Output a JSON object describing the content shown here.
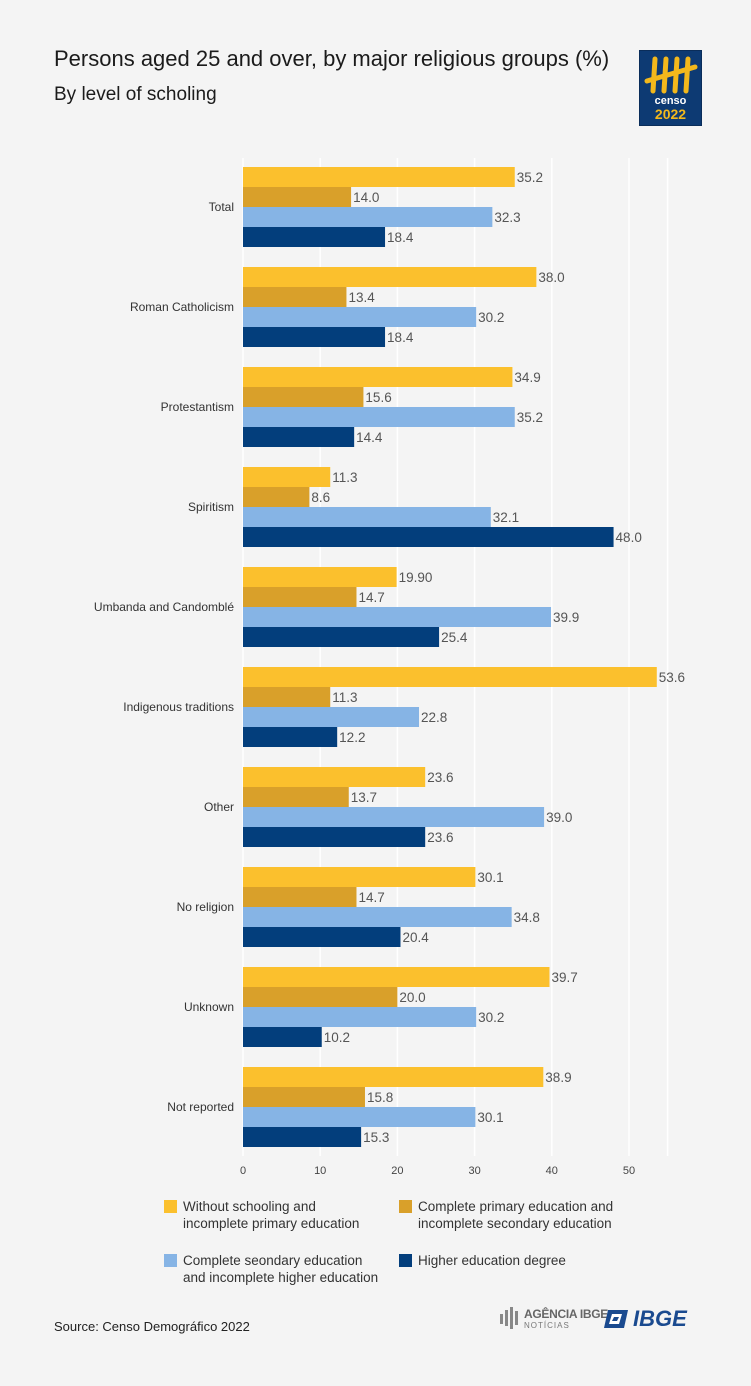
{
  "header": {
    "title": "Persons aged 25 and over, by major religious groups (%)",
    "subtitle": "By level of scholing"
  },
  "logo": {
    "word1": "censo",
    "word2": "2022",
    "icon": "tally-marks-icon"
  },
  "footer": {
    "source": "Source: Censo Demográfico 2022",
    "agencia_line1": "AGÊNCIA IBGE",
    "agencia_line2": "NOTÍCIAS",
    "ibge": "IBGE"
  },
  "colors": {
    "series1": "#fbc02d",
    "series2": "#d9a02a",
    "series3": "#86b4e5",
    "series4": "#033e7c",
    "grid": "#ffffff",
    "label": "#555555"
  },
  "chart_data": {
    "type": "bar",
    "orientation": "horizontal",
    "grid": true,
    "legend_position": "bottom",
    "xlim": [
      0,
      55
    ],
    "x_ticks": [
      "0",
      "10",
      "20",
      "30",
      "40",
      "50"
    ],
    "categories": [
      "Total",
      "Roman Catholicism",
      "Protestantism",
      "Spiritism",
      "Umbanda and Candomblé",
      "Indigenous traditions",
      "Other",
      "No religion",
      "Unknown",
      "Not reported"
    ],
    "series": [
      {
        "name": "Without schooling and\nincomplete primary education",
        "values": [
          35.2,
          38.0,
          34.9,
          11.3,
          19.9,
          53.6,
          23.6,
          30.1,
          39.7,
          38.9
        ],
        "labels": [
          "35.2",
          "38.0",
          "34.9",
          "11.3",
          "19.90",
          "53.6",
          "23.6",
          "30.1",
          "39.7",
          "38.9"
        ]
      },
      {
        "name": "Complete primary education and\nincomplete secondary education",
        "values": [
          14.0,
          13.4,
          15.6,
          8.6,
          14.7,
          11.3,
          13.7,
          14.7,
          20.0,
          15.8
        ],
        "labels": [
          "14.0",
          "13.4",
          "15.6",
          "8.6",
          "14.7",
          "11.3",
          "13.7",
          "14.7",
          "20.0",
          "15.8"
        ]
      },
      {
        "name": "Complete seondary education\nand incomplete higher education",
        "values": [
          32.3,
          30.2,
          35.2,
          32.1,
          39.9,
          22.8,
          39.0,
          34.8,
          30.2,
          30.1
        ],
        "labels": [
          "32.3",
          "30.2",
          "35.2",
          "32.1",
          "39.9",
          "22.8",
          "39.0",
          "34.8",
          "30.2",
          "30.1"
        ]
      },
      {
        "name": "Higher education degree",
        "values": [
          18.4,
          18.4,
          14.4,
          48.0,
          25.4,
          12.2,
          23.6,
          20.4,
          10.2,
          15.3
        ],
        "labels": [
          "18.4",
          "18.4",
          "14.4",
          "48.0",
          "25.4",
          "12.2",
          "23.6",
          "20.4",
          "10.2",
          "15.3"
        ]
      }
    ]
  }
}
